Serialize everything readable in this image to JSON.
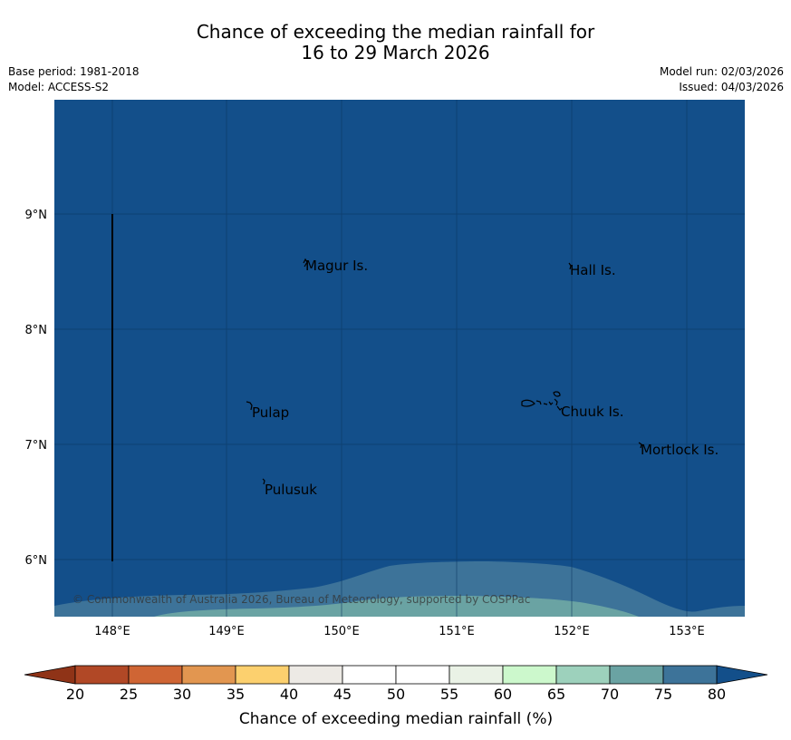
{
  "title": {
    "line1": "Chance of exceeding the median rainfall for",
    "line2": "16 to 29 March 2026"
  },
  "meta": {
    "base_period": "Base period: 1981-2018",
    "model": "Model: ACCESS-S2",
    "model_run": "Model run: 02/03/2026",
    "issued": "Issued: 04/03/2026"
  },
  "map": {
    "x_ticks": [
      "148°E",
      "149°E",
      "150°E",
      "151°E",
      "152°E",
      "153°E"
    ],
    "y_ticks": [
      "9°N",
      "8°N",
      "7°N",
      "6°N"
    ],
    "places": [
      "Magur Is.",
      "Hall Is.",
      "Pulap",
      "Chuuk Is.",
      "Mortlock Is.",
      "Pulusuk"
    ],
    "copyright": "© Commonwealth of Australia 2026, Bureau of Meteorology, supported by COSPPac",
    "colors": {
      "above_80": "#134f8a",
      "c75_80": "#3d7399",
      "c70_75": "#6aa3a3"
    }
  },
  "colorbar": {
    "ticks": [
      "20",
      "25",
      "30",
      "35",
      "40",
      "45",
      "50",
      "55",
      "60",
      "65",
      "70",
      "75",
      "80"
    ],
    "colors": [
      "#b14826",
      "#cf6534",
      "#e29650",
      "#fcd06e",
      "#edeae5",
      "#ffffff",
      "#ffffff",
      "#eaf2e6",
      "#ccf8cc",
      "#9dd1bc",
      "#6aa3a3",
      "#3d7399"
    ],
    "low_color": "#8f3317",
    "high_color": "#134f8a",
    "label": "Chance of exceeding median rainfall (%)"
  }
}
